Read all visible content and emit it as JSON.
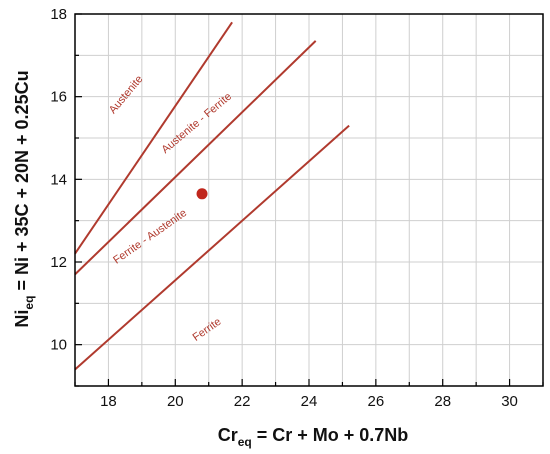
{
  "chart_data": {
    "type": "line",
    "xlabel": {
      "main": "Cr",
      "sub": "eq",
      "rest": " = Cr + Mo + 0.7Nb"
    },
    "ylabel": {
      "main": "Ni",
      "sub": "eq",
      "rest": " = Ni + 35C + 20N + 0.25Cu"
    },
    "xlim": [
      17,
      31
    ],
    "ylim": [
      9,
      18
    ],
    "x_ticks": [
      18,
      20,
      22,
      24,
      26,
      28,
      30
    ],
    "y_ticks": [
      10,
      12,
      14,
      16,
      18
    ],
    "grid": true,
    "series": [
      {
        "x": [
          17,
          21.7
        ],
        "y": [
          12.2,
          17.8
        ]
      },
      {
        "x": [
          17,
          24.2
        ],
        "y": [
          11.7,
          17.35
        ]
      },
      {
        "x": [
          17,
          25.2
        ],
        "y": [
          9.4,
          15.3
        ]
      }
    ],
    "points": [
      {
        "x": 20.8,
        "y": 13.65
      }
    ],
    "annotations": [
      {
        "text": "Austenite",
        "x": 18.6,
        "y": 16.0,
        "angle": -50
      },
      {
        "text": "Austenite - Ferrite",
        "x": 20.7,
        "y": 15.3,
        "angle": -40
      },
      {
        "text": "Ferrite - Austenite",
        "x": 19.3,
        "y": 12.55,
        "angle": -35
      },
      {
        "text": "Ferrite",
        "x": 21.0,
        "y": 10.3,
        "angle": -35
      }
    ],
    "colors": {
      "line": "#b03a2e",
      "point": "#c0261c",
      "grid": "#cfcfcf",
      "axis": "#000000"
    }
  }
}
